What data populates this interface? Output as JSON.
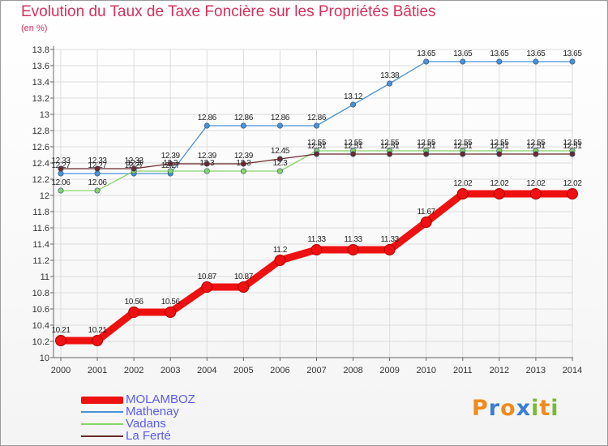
{
  "title": "Evolution du Taux de Taxe Foncière sur les Propriétés Bâties",
  "unit_label": "(en %)",
  "logo": {
    "text": "Proxiti",
    "letters": [
      "P",
      "r",
      "o",
      "x",
      "i",
      "t",
      "i"
    ],
    "colors": [
      "#f08a1c",
      "#3a7fd1",
      "#f08a1c",
      "#3a7fd1",
      "#7ab839",
      "#f08a1c",
      "#7ab839"
    ]
  },
  "chart_data": {
    "type": "line",
    "title": "Evolution du Taux de Taxe Foncière sur les Propriétés Bâties",
    "ylabel": "(en %)",
    "xlabel": "",
    "ylim": [
      10,
      13.8
    ],
    "yticks": [
      "10",
      "10.2",
      "10.4",
      "10.6",
      "10.8",
      "11",
      "11.2",
      "11.4",
      "11.6",
      "11.8",
      "12",
      "12.2",
      "12.4",
      "12.6",
      "12.8",
      "13",
      "13.2",
      "13.4",
      "13.6",
      "13.8"
    ],
    "x": [
      "2000",
      "2001",
      "2002",
      "2003",
      "2004",
      "2005",
      "2006",
      "2007",
      "2008",
      "2009",
      "2010",
      "2011",
      "2012",
      "2013",
      "2014"
    ],
    "series": [
      {
        "name": "MOLAMBOZ",
        "color": "#ee1111",
        "values": [
          10.21,
          10.21,
          10.56,
          10.56,
          10.87,
          10.87,
          11.2,
          11.33,
          11.33,
          11.33,
          11.67,
          12.02,
          12.02,
          12.02,
          12.02
        ],
        "labels": [
          "10.21",
          "10.21",
          "10.56",
          "10.56",
          "10.87",
          "10.87",
          "11.2",
          "11.33",
          "11.33",
          "11.33",
          "11.67",
          "12.02",
          "12.02",
          "12.02",
          "12.02"
        ]
      },
      {
        "name": "Mathenay",
        "color": "#4a92d6",
        "values": [
          12.27,
          12.27,
          12.27,
          12.27,
          12.86,
          12.86,
          12.86,
          12.86,
          13.12,
          13.38,
          13.65,
          13.65,
          13.65,
          13.65,
          13.65
        ],
        "labels": [
          "12.27",
          "12.27",
          "12.27",
          "12.27",
          "12.86",
          "12.86",
          "12.86",
          "12.86",
          "13.12",
          "13.38",
          "13.65",
          "13.65",
          "13.65",
          "13.65",
          "13.65"
        ]
      },
      {
        "name": "Vadans",
        "color": "#88d36a",
        "values": [
          12.06,
          12.06,
          12.3,
          12.3,
          12.3,
          12.3,
          12.3,
          12.55,
          12.55,
          12.55,
          12.55,
          12.55,
          12.55,
          12.55,
          12.55
        ],
        "labels": [
          "12.06",
          "12.06",
          "12.3",
          "12.3",
          "12.3",
          "12.3",
          "12.3",
          "12.55",
          "12.55",
          "12.55",
          "12.55",
          "12.55",
          "12.55",
          "12.55",
          "12.55"
        ]
      },
      {
        "name": "La Ferté",
        "color": "#6a2a2a",
        "values": [
          12.33,
          12.33,
          12.33,
          12.39,
          12.39,
          12.39,
          12.45,
          12.51,
          12.51,
          12.51,
          12.51,
          12.51,
          12.51,
          12.51,
          12.51
        ],
        "labels": [
          "12.33",
          "12.33",
          "12.33",
          "12.39",
          "12.39",
          "12.39",
          "12.45",
          "12.51",
          "12.51",
          "12.51",
          "12.51",
          "12.51",
          "12.51",
          "12.51",
          "12.51"
        ]
      }
    ],
    "legend": {
      "position": "bottom-left",
      "items": [
        "MOLAMBOZ",
        "Mathenay",
        "Vadans",
        "La Ferté"
      ]
    },
    "grid": true
  }
}
